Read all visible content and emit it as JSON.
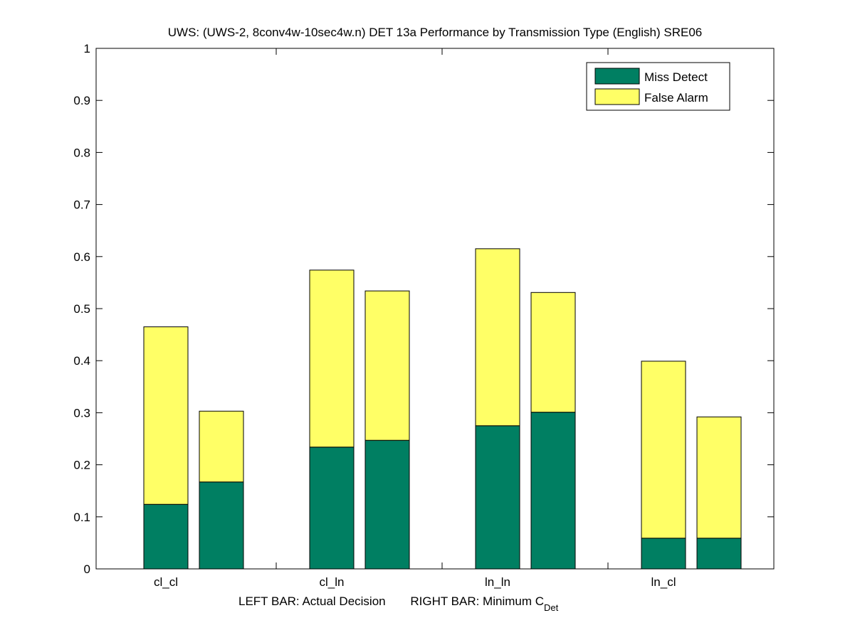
{
  "chart_data": {
    "type": "bar",
    "stacked": true,
    "title": "UWS: (UWS-2, 8conv4w-10sec4w.n) DET 13a Performance by Transmission Type (English) SRE06",
    "xlabel": {
      "left": "LEFT BAR: Actual Decision",
      "right": "RIGHT BAR: Minimum C",
      "subscript": "Det"
    },
    "ylabel": "",
    "ylim": [
      0,
      1
    ],
    "yticks": [
      "0",
      "0.1",
      "0.2",
      "0.3",
      "0.4",
      "0.5",
      "0.6",
      "0.7",
      "0.8",
      "0.9",
      "1"
    ],
    "categories": [
      "cl_cl",
      "cl_ln",
      "ln_ln",
      "ln_cl"
    ],
    "bars_per_category": [
      "Actual Decision",
      "Minimum CDet"
    ],
    "series": [
      {
        "name": "Miss Detect",
        "color": "#007F62",
        "values": [
          [
            0.124,
            0.167
          ],
          [
            0.234,
            0.247
          ],
          [
            0.275,
            0.301
          ],
          [
            0.059,
            0.059
          ]
        ]
      },
      {
        "name": "False Alarm",
        "color": "#FFFF66",
        "values": [
          [
            0.341,
            0.136
          ],
          [
            0.34,
            0.287
          ],
          [
            0.34,
            0.23
          ],
          [
            0.34,
            0.233
          ]
        ]
      }
    ],
    "legend": {
      "placement": "top-right",
      "entries": [
        "Miss Detect",
        "False Alarm"
      ]
    },
    "grid": false
  }
}
